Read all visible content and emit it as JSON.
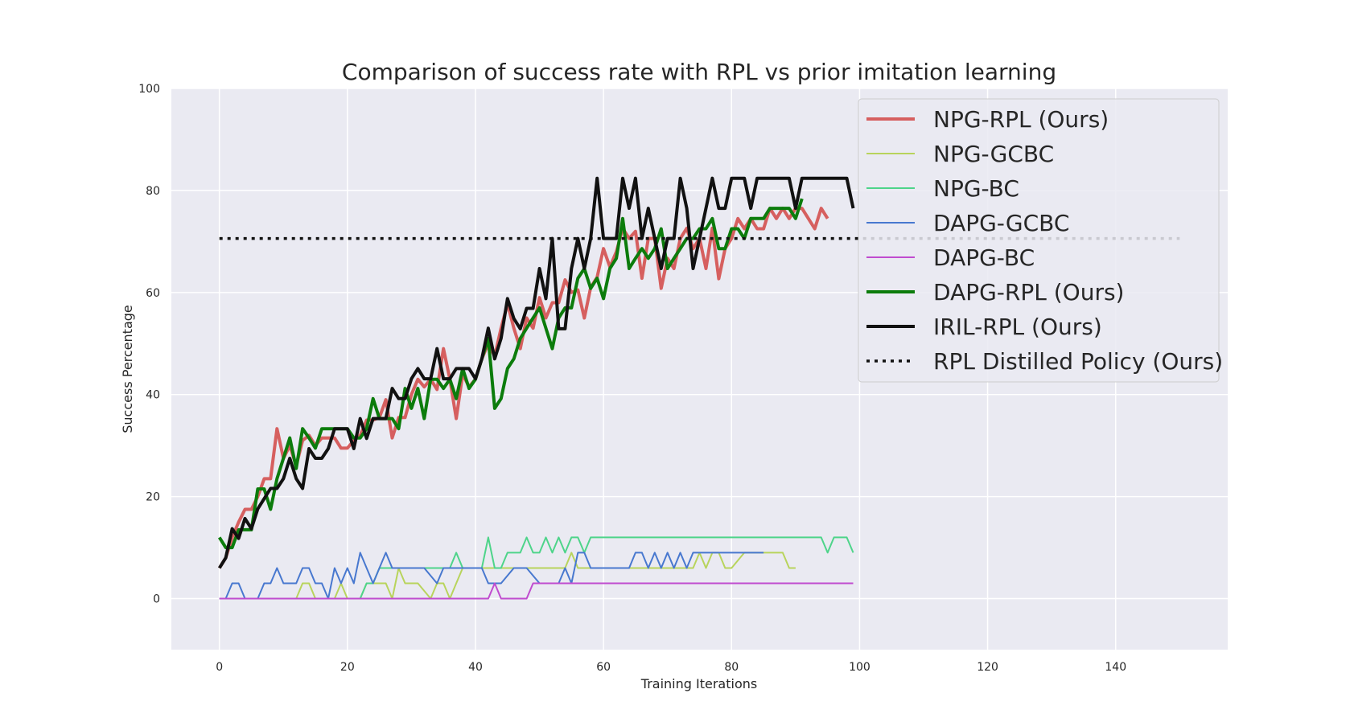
{
  "chart_data": {
    "type": "line",
    "title": "Comparison of success rate with RPL vs prior imitation learning",
    "xlabel": "Training Iterations",
    "ylabel": "Success Percentage",
    "xlim": [
      -7.5,
      157.5
    ],
    "ylim": [
      -10,
      100
    ],
    "xticks": [
      0,
      20,
      40,
      60,
      80,
      100,
      120,
      140
    ],
    "yticks": [
      0,
      20,
      40,
      60,
      80,
      100
    ],
    "grid": true,
    "legend_position": "top-right",
    "colors": {
      "background": "#eaeaf2",
      "grid": "#ffffff",
      "text": "#262626"
    },
    "series": [
      {
        "name": "NPG-RPL (Ours)",
        "color": "#d65f5f",
        "width": 4,
        "dash": "solid",
        "x": [
          0,
          1,
          2,
          3,
          4,
          5,
          6,
          7,
          8,
          9,
          10,
          11,
          12,
          13,
          14,
          15,
          16,
          17,
          18,
          19,
          20,
          21,
          22,
          23,
          24,
          25,
          26,
          27,
          28,
          29,
          30,
          31,
          32,
          33,
          34,
          35,
          36,
          37,
          38,
          39,
          40,
          41,
          42,
          43,
          44,
          45,
          46,
          47,
          48,
          49,
          50,
          51,
          52,
          53,
          54,
          55,
          56,
          57,
          58,
          59,
          60,
          61,
          62,
          63,
          64,
          65,
          66,
          67,
          68,
          69,
          70,
          71,
          72,
          73,
          74,
          75,
          76,
          77,
          78,
          79,
          80,
          81,
          82,
          83,
          84,
          85,
          86,
          87,
          88,
          89,
          90,
          91,
          92,
          93,
          94,
          95
        ],
        "y": [
          6,
          8,
          12,
          15,
          17.5,
          17.5,
          20,
          23.5,
          23.5,
          33.3,
          27.5,
          30,
          26,
          31,
          32,
          30,
          31.5,
          31.5,
          31.5,
          29.5,
          29.5,
          31,
          32,
          35,
          35,
          35.5,
          39,
          31.5,
          35.5,
          35.5,
          40,
          43,
          41.5,
          43,
          41,
          49,
          43,
          35.3,
          44,
          41.5,
          43,
          47,
          50,
          47.5,
          53,
          57.8,
          53,
          49,
          55,
          53,
          59,
          55,
          58,
          58,
          62.5,
          60,
          60.5,
          55,
          61,
          63,
          68.6,
          65,
          68,
          72.6,
          70.6,
          72,
          62.8,
          70.6,
          70.6,
          60.8,
          66.7,
          64.7,
          70.6,
          72.6,
          68.6,
          70.6,
          64.7,
          72.6,
          62.7,
          68.6,
          70.6,
          74.5,
          72.5,
          74.5,
          72.5,
          72.5,
          76.5,
          74.5,
          76.5,
          74.5,
          76.5,
          76.5,
          74.5,
          72.5,
          76.5,
          74.5
        ]
      },
      {
        "name": "NPG-GCBC",
        "color": "#b8d45c",
        "width": 2,
        "dash": "solid",
        "x": [
          0,
          2,
          4,
          6,
          8,
          10,
          12,
          13,
          14,
          15,
          16,
          18,
          19,
          20,
          21,
          22,
          23,
          24,
          25,
          26,
          27,
          28,
          29,
          30,
          31,
          33,
          34,
          35,
          36,
          37,
          38,
          40,
          42,
          44,
          46,
          48,
          50,
          52,
          54,
          55,
          56,
          58,
          60,
          62,
          64,
          66,
          68,
          70,
          72,
          74,
          75,
          76,
          77,
          78,
          79,
          80,
          82,
          84,
          86,
          87,
          88,
          89,
          90
        ],
        "y": [
          0,
          0,
          0,
          0,
          0,
          0,
          0,
          3,
          3,
          0,
          0,
          0,
          3,
          0,
          0,
          0,
          3,
          3,
          3,
          3,
          0,
          6,
          3,
          3,
          3,
          0,
          3,
          3,
          0,
          3,
          6,
          6,
          6,
          6,
          6,
          6,
          6,
          6,
          6,
          9,
          6,
          6,
          6,
          6,
          6,
          6,
          6,
          6,
          6,
          6,
          9,
          6,
          9,
          9,
          6,
          6,
          9,
          9,
          9,
          9,
          9,
          6,
          6
        ]
      },
      {
        "name": "NPG-BC",
        "color": "#4ed48a",
        "width": 2,
        "dash": "solid",
        "x": [
          0,
          4,
          8,
          12,
          16,
          18,
          20,
          22,
          23,
          24,
          25,
          28,
          32,
          36,
          37,
          38,
          40,
          41,
          42,
          43,
          44,
          45,
          46,
          47,
          48,
          49,
          50,
          51,
          52,
          53,
          54,
          55,
          56,
          57,
          58,
          60,
          70,
          80,
          85,
          90,
          94,
          95,
          96,
          98,
          99
        ],
        "y": [
          0,
          0,
          0,
          0,
          0,
          0,
          0,
          0,
          3,
          3,
          6,
          6,
          6,
          6,
          9,
          6,
          6,
          6,
          12,
          6,
          6,
          9,
          9,
          9,
          12,
          9,
          9,
          12,
          9,
          12,
          9,
          12,
          12,
          9,
          12,
          12,
          12,
          12,
          12,
          12,
          12,
          9,
          12,
          12,
          9
        ]
      },
      {
        "name": "DAPG-GCBC",
        "color": "#4878cf",
        "width": 2,
        "dash": "solid",
        "x": [
          0,
          1,
          2,
          3,
          4,
          5,
          6,
          7,
          8,
          9,
          10,
          11,
          12,
          13,
          14,
          15,
          16,
          17,
          18,
          19,
          20,
          21,
          22,
          23,
          24,
          25,
          26,
          27,
          28,
          30,
          32,
          34,
          35,
          36,
          38,
          40,
          41,
          42,
          43,
          44,
          46,
          48,
          50,
          51,
          52,
          53,
          54,
          55,
          56,
          57,
          58,
          60,
          62,
          64,
          65,
          66,
          67,
          68,
          69,
          70,
          71,
          72,
          73,
          74,
          75,
          76,
          78,
          80,
          82,
          84,
          85
        ],
        "y": [
          0,
          0,
          3,
          3,
          0,
          0,
          0,
          3,
          3,
          6,
          3,
          3,
          3,
          6,
          6,
          3,
          3,
          0,
          6,
          3,
          6,
          3,
          9,
          6,
          3,
          6,
          9,
          6,
          6,
          6,
          6,
          3,
          6,
          6,
          6,
          6,
          6,
          3,
          3,
          3,
          6,
          6,
          3,
          3,
          3,
          3,
          6,
          3,
          9,
          9,
          6,
          6,
          6,
          6,
          9,
          9,
          6,
          9,
          6,
          9,
          6,
          9,
          6,
          9,
          9,
          9,
          9,
          9,
          9,
          9,
          9
        ]
      },
      {
        "name": "DAPG-BC",
        "color": "#c04ccf",
        "width": 2,
        "dash": "solid",
        "x": [
          0,
          10,
          20,
          30,
          40,
          42,
          43,
          44,
          46,
          48,
          49,
          50,
          60,
          70,
          80,
          90,
          99
        ],
        "y": [
          0,
          0,
          0,
          0,
          0,
          0,
          3,
          0,
          0,
          0,
          3,
          3,
          3,
          3,
          3,
          3,
          3
        ]
      },
      {
        "name": "DAPG-RPL (Ours)",
        "color": "#0c7c0c",
        "width": 4,
        "dash": "solid",
        "x": [
          0,
          1,
          2,
          3,
          4,
          5,
          6,
          7,
          8,
          9,
          10,
          11,
          12,
          13,
          14,
          15,
          16,
          17,
          18,
          19,
          20,
          21,
          22,
          23,
          24,
          25,
          26,
          27,
          28,
          29,
          30,
          31,
          32,
          33,
          34,
          35,
          36,
          37,
          38,
          39,
          40,
          41,
          42,
          43,
          44,
          45,
          46,
          47,
          48,
          49,
          50,
          51,
          52,
          53,
          54,
          55,
          56,
          57,
          58,
          59,
          60,
          61,
          62,
          63,
          64,
          65,
          66,
          67,
          68,
          69,
          70,
          71,
          72,
          73,
          74,
          75,
          76,
          77,
          78,
          79,
          80,
          81,
          82,
          83,
          84,
          85,
          86,
          87,
          88,
          89,
          90,
          91
        ],
        "y": [
          12,
          10,
          10,
          13.5,
          13.5,
          13.5,
          21.5,
          21.5,
          17.5,
          23.5,
          27.5,
          31.5,
          25.5,
          33.3,
          31.5,
          29.5,
          33.3,
          33.3,
          33.3,
          33.3,
          33.3,
          31.5,
          31.5,
          33.3,
          39.2,
          35.3,
          35.3,
          35.3,
          33.3,
          41.2,
          37.3,
          41.2,
          35.3,
          43,
          43,
          41.2,
          43,
          39.2,
          45.1,
          41.2,
          43,
          47,
          51,
          37.3,
          39.2,
          45.1,
          47,
          51,
          53,
          55,
          57,
          53,
          49,
          55,
          57,
          57,
          62.8,
          64.7,
          60.8,
          62.8,
          58.8,
          64.7,
          66.7,
          74.5,
          64.7,
          66.7,
          68.6,
          66.7,
          68.6,
          72.5,
          64.7,
          66.7,
          68.6,
          70.6,
          70.6,
          72.5,
          72.5,
          74.5,
          68.6,
          68.6,
          72.5,
          72.5,
          70.6,
          74.5,
          74.5,
          74.5,
          76.5,
          76.5,
          76.5,
          76.5,
          74.5,
          78.4
        ]
      },
      {
        "name": "IRIL-RPL (Ours)",
        "color": "#111111",
        "width": 4,
        "dash": "solid",
        "x": [
          0,
          1,
          2,
          3,
          4,
          5,
          6,
          7,
          8,
          9,
          10,
          11,
          12,
          13,
          14,
          15,
          16,
          17,
          18,
          19,
          20,
          21,
          22,
          23,
          24,
          25,
          26,
          27,
          28,
          29,
          30,
          31,
          32,
          33,
          34,
          35,
          36,
          37,
          38,
          39,
          40,
          41,
          42,
          43,
          44,
          45,
          46,
          47,
          48,
          49,
          50,
          51,
          52,
          53,
          54,
          55,
          56,
          57,
          58,
          59,
          60,
          61,
          62,
          63,
          64,
          65,
          66,
          67,
          68,
          69,
          70,
          71,
          72,
          73,
          74,
          75,
          76,
          77,
          78,
          79,
          80,
          81,
          82,
          83,
          84,
          85,
          86,
          87,
          88,
          89,
          90,
          91,
          92,
          93,
          94,
          95,
          96,
          97,
          98,
          99
        ],
        "y": [
          6,
          8,
          13.7,
          11.8,
          15.7,
          13.7,
          17.6,
          19.6,
          21.6,
          21.6,
          23.5,
          27.5,
          23.5,
          21.6,
          29.4,
          27.5,
          27.5,
          29.4,
          33.3,
          33.3,
          33.3,
          29.4,
          35.3,
          31.4,
          35.3,
          35.3,
          35.3,
          41.2,
          39.2,
          39.2,
          43.1,
          45.1,
          43.1,
          43.1,
          49,
          43.1,
          43.1,
          45.1,
          45.1,
          45.1,
          43.1,
          47,
          53,
          47,
          51,
          58.8,
          54.9,
          52.9,
          56.9,
          56.9,
          64.7,
          58.8,
          70.6,
          52.9,
          52.9,
          64.7,
          70.6,
          64.7,
          70.6,
          82.4,
          70.6,
          70.6,
          70.6,
          82.4,
          76.5,
          82.4,
          70.6,
          76.5,
          70.6,
          64.7,
          70.6,
          70.6,
          82.4,
          76.5,
          64.7,
          70.6,
          76.5,
          82.4,
          76.5,
          76.5,
          82.4,
          82.4,
          82.4,
          76.5,
          82.4,
          82.4,
          82.4,
          82.4,
          82.4,
          82.4,
          76.5,
          82.4,
          82.4,
          82.4,
          82.4,
          82.4,
          82.4,
          82.4,
          82.4,
          76.5
        ]
      },
      {
        "name": "RPL Distilled Policy (Ours)",
        "color": "#111111",
        "width": 3.5,
        "dash": "dotted",
        "x": [
          0,
          150
        ],
        "y": [
          70.6,
          70.6
        ]
      }
    ]
  }
}
